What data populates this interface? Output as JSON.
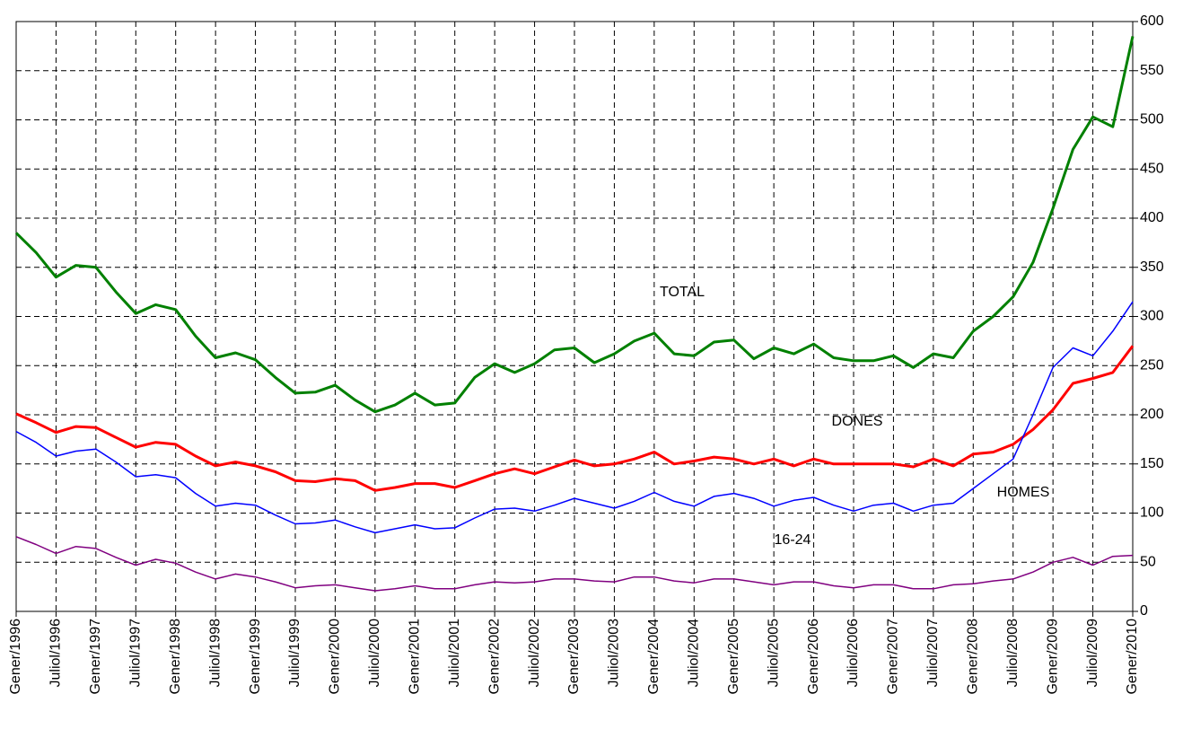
{
  "chart_data": {
    "type": "line",
    "categories": [
      "Gener/1996",
      null,
      "Juliol/1996",
      null,
      "Gener/1997",
      null,
      "Juliol/1997",
      null,
      "Gener/1998",
      null,
      "Juliol/1998",
      null,
      "Gener/1999",
      null,
      "Juliol/1999",
      null,
      "Gener/2000",
      null,
      "Juliol/2000",
      null,
      "Gener/2001",
      null,
      "Juliol/2001",
      null,
      "Gener/2002",
      null,
      "Juliol/2002",
      null,
      "Gener/2003",
      null,
      "Juliol/2003",
      null,
      "Gener/2004",
      null,
      "Juliol/2004",
      null,
      "Gener/2005",
      null,
      "Juliol/2005",
      null,
      "Gener/2006",
      null,
      "Juliol/2006",
      null,
      "Gener/2007",
      null,
      "Juliol/2007",
      null,
      "Gener/2008",
      null,
      "Juliol/2008",
      null,
      "Gener/2009",
      null,
      "Juliol/2009",
      null,
      "Gener/2010"
    ],
    "series": [
      {
        "name": "TOTAL",
        "color": "#008000",
        "values": [
          385,
          365,
          340,
          352,
          350,
          325,
          303,
          312,
          307,
          280,
          258,
          263,
          256,
          238,
          222,
          223,
          230,
          215,
          203,
          210,
          222,
          210,
          212,
          238,
          252,
          243,
          252,
          266,
          268,
          253,
          262,
          275,
          283,
          262,
          260,
          274,
          276,
          257,
          268,
          262,
          272,
          258,
          255,
          255,
          260,
          248,
          262,
          258,
          285,
          300,
          320,
          355,
          410,
          470,
          503,
          493,
          585
        ]
      },
      {
        "name": "DONES",
        "color": "#ff0000",
        "values": [
          201,
          192,
          182,
          188,
          187,
          177,
          167,
          172,
          170,
          158,
          148,
          152,
          148,
          142,
          133,
          132,
          135,
          133,
          123,
          126,
          130,
          130,
          126,
          133,
          140,
          145,
          140,
          147,
          154,
          148,
          150,
          155,
          162,
          150,
          153,
          157,
          155,
          150,
          155,
          148,
          155,
          150,
          150,
          150,
          150,
          147,
          155,
          148,
          160,
          162,
          170,
          185,
          205,
          232,
          237,
          243,
          270
        ]
      },
      {
        "name": "HOMES",
        "color": "#0000ff",
        "values": [
          183,
          172,
          158,
          163,
          165,
          152,
          137,
          139,
          136,
          120,
          107,
          110,
          108,
          98,
          89,
          90,
          93,
          86,
          80,
          84,
          88,
          84,
          85,
          95,
          104,
          105,
          102,
          108,
          115,
          110,
          105,
          112,
          121,
          112,
          107,
          117,
          120,
          115,
          107,
          113,
          116,
          108,
          102,
          108,
          110,
          102,
          108,
          110,
          125,
          140,
          155,
          200,
          248,
          268,
          260,
          285,
          315
        ]
      },
      {
        "name": "16-24",
        "color": "#800080",
        "values": [
          76,
          68,
          59,
          66,
          64,
          55,
          47,
          53,
          49,
          40,
          33,
          38,
          35,
          30,
          24,
          26,
          27,
          24,
          21,
          23,
          26,
          23,
          23,
          27,
          30,
          29,
          30,
          33,
          33,
          31,
          30,
          35,
          35,
          31,
          29,
          33,
          33,
          30,
          27,
          30,
          30,
          26,
          24,
          27,
          27,
          23,
          23,
          27,
          28,
          31,
          33,
          40,
          50,
          55,
          47,
          56,
          57
        ]
      }
    ],
    "ylim": [
      0,
      600
    ],
    "yticks": [
      0,
      50,
      100,
      150,
      200,
      250,
      300,
      350,
      400,
      450,
      500,
      550,
      600
    ],
    "grid": true
  }
}
